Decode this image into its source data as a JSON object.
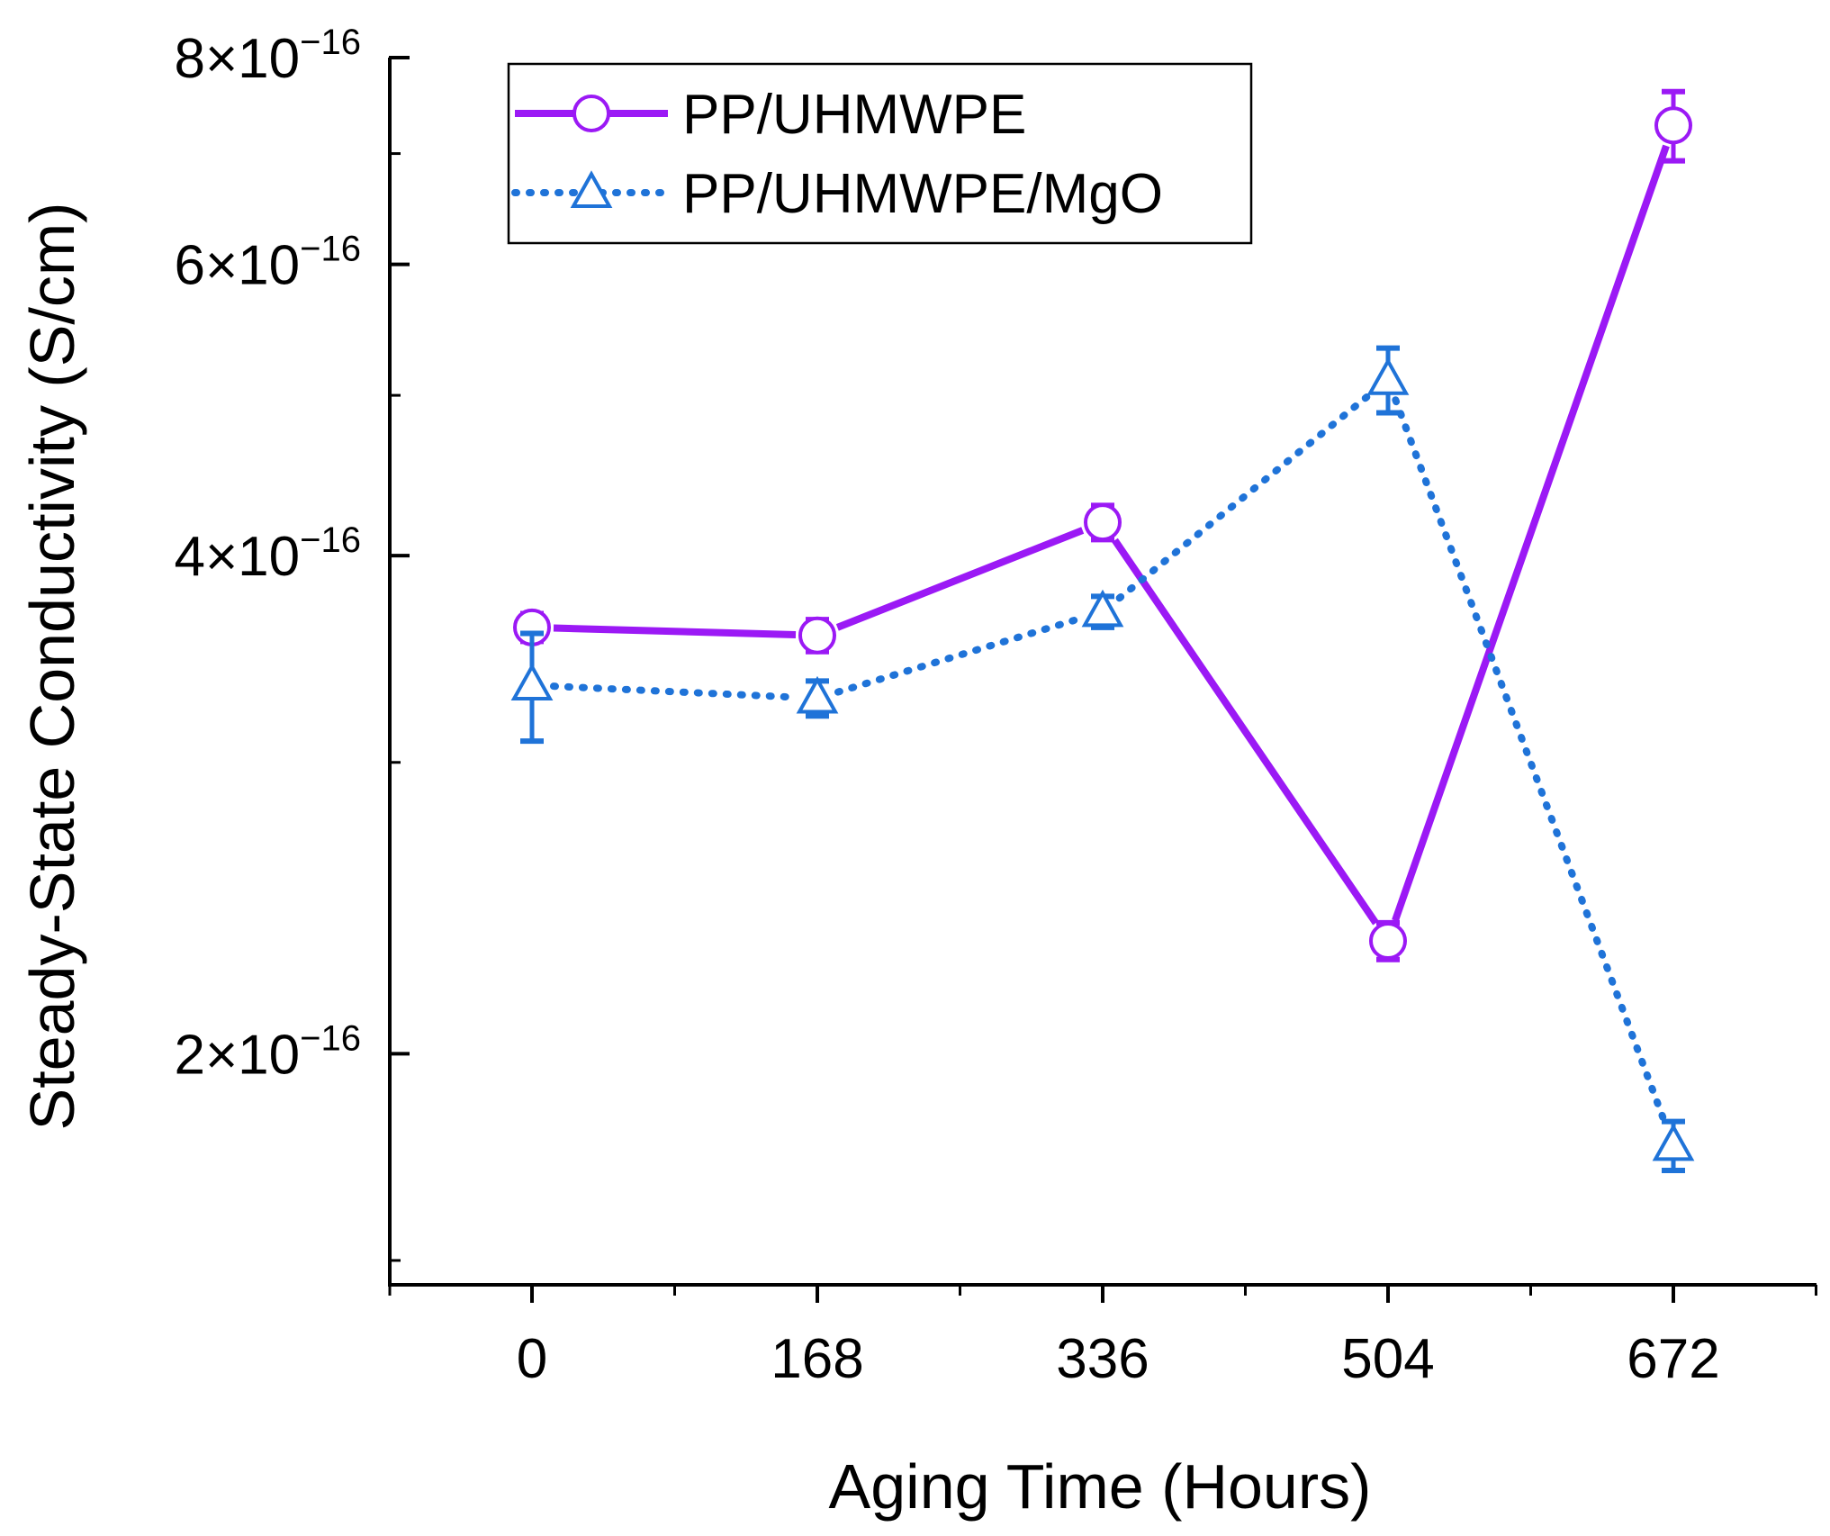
{
  "chart_data": {
    "type": "line",
    "title": "",
    "xlabel": "Aging Time (Hours)",
    "ylabel": "Steady-State Conductivity (S/cm)",
    "yscale": "log",
    "ylim": [
      1.45e-16,
      8e-16
    ],
    "x": [
      0,
      168,
      336,
      504,
      672
    ],
    "x_tick_labels": [
      "0",
      "168",
      "336",
      "504",
      "672"
    ],
    "y_ticks": [
      {
        "value": 2e-16,
        "mantissa": "2×10",
        "exponent": "−16"
      },
      {
        "value": 4e-16,
        "mantissa": "4×10",
        "exponent": "−16"
      },
      {
        "value": 6e-16,
        "mantissa": "6×10",
        "exponent": "−16"
      },
      {
        "value": 8e-16,
        "mantissa": "8×10",
        "exponent": "−16"
      }
    ],
    "legend_position": "top-left",
    "series": [
      {
        "name": "PP/UHMWPE",
        "color": "#9b19f5",
        "line_style": "solid",
        "marker": "circle",
        "values": [
          3.62e-16,
          3.58e-16,
          4.19e-16,
          2.34e-16,
          7.28e-16
        ],
        "errors": [
          7e-18,
          8e-18,
          1e-17,
          6e-18,
          3.5e-17
        ]
      },
      {
        "name": "PP/UHMWPE/MgO",
        "color": "#1f73d8",
        "line_style": "dotted",
        "marker": "triangle",
        "values": [
          3.34e-16,
          3.28e-16,
          3.7e-16,
          5.11e-16,
          1.76e-16
        ],
        "errors": [
          2.5e-17,
          8e-18,
          8e-18,
          2.3e-17,
          6e-18
        ]
      }
    ]
  }
}
